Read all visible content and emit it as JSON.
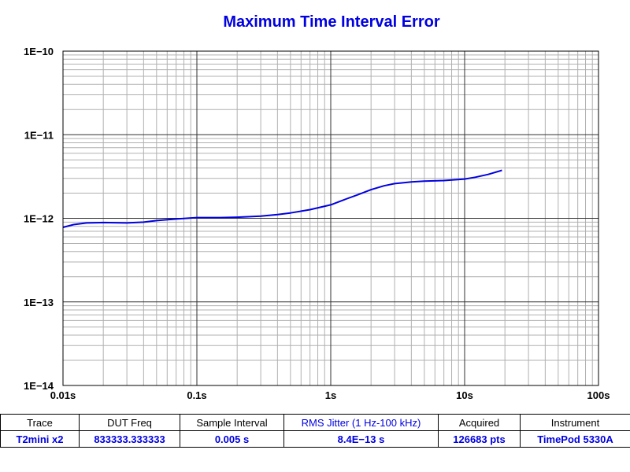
{
  "chart_data": {
    "type": "line",
    "title": "Maximum Time Interval Error",
    "xlabel": "",
    "ylabel": "",
    "x_scale": "log",
    "y_scale": "log",
    "xlim": [
      0.01,
      100
    ],
    "ylim": [
      1e-14,
      1e-10
    ],
    "grid": true,
    "x_ticks": [
      {
        "value": 0.01,
        "label": "0.01s"
      },
      {
        "value": 0.1,
        "label": "0.1s"
      },
      {
        "value": 1,
        "label": "1s"
      },
      {
        "value": 10,
        "label": "10s"
      },
      {
        "value": 100,
        "label": "100s"
      }
    ],
    "y_ticks": [
      {
        "value": 1e-10,
        "label": "1E−10"
      },
      {
        "value": 1e-11,
        "label": "1E−11"
      },
      {
        "value": 1e-12,
        "label": "1E−12"
      },
      {
        "value": 1e-13,
        "label": "1E−13"
      },
      {
        "value": 1e-14,
        "label": "1E−14"
      }
    ],
    "series": [
      {
        "color": "#0000e0",
        "x": [
          0.01,
          0.012,
          0.015,
          0.02,
          0.03,
          0.04,
          0.05,
          0.07,
          0.1,
          0.15,
          0.2,
          0.3,
          0.4,
          0.5,
          0.7,
          1.0,
          1.3,
          1.6,
          2.0,
          2.5,
          3.0,
          4.0,
          5.0,
          7.0,
          10.0,
          12.0,
          15.0,
          19.0
        ],
        "y": [
          7.8e-13,
          8.4e-13,
          8.8e-13,
          8.9e-13,
          8.8e-13,
          9e-13,
          9.4e-13,
          9.8e-13,
          1.02e-12,
          1.02e-12,
          1.03e-12,
          1.06e-12,
          1.11e-12,
          1.16e-12,
          1.27e-12,
          1.45e-12,
          1.7e-12,
          1.92e-12,
          2.2e-12,
          2.45e-12,
          2.6e-12,
          2.72e-12,
          2.78e-12,
          2.83e-12,
          2.95e-12,
          3.1e-12,
          3.35e-12,
          3.75e-12
        ]
      }
    ]
  },
  "info_table": {
    "headers": [
      "Trace",
      "DUT Freq",
      "Sample Interval",
      "RMS Jitter (1 Hz-100 kHz)",
      "Acquired",
      "Instrument"
    ],
    "values": [
      "T2mini x2",
      "833333.333333",
      "0.005 s",
      "8.4E−13 s",
      "126683 pts",
      "TimePod 5330A"
    ],
    "highlight_color": "#0000e0"
  }
}
